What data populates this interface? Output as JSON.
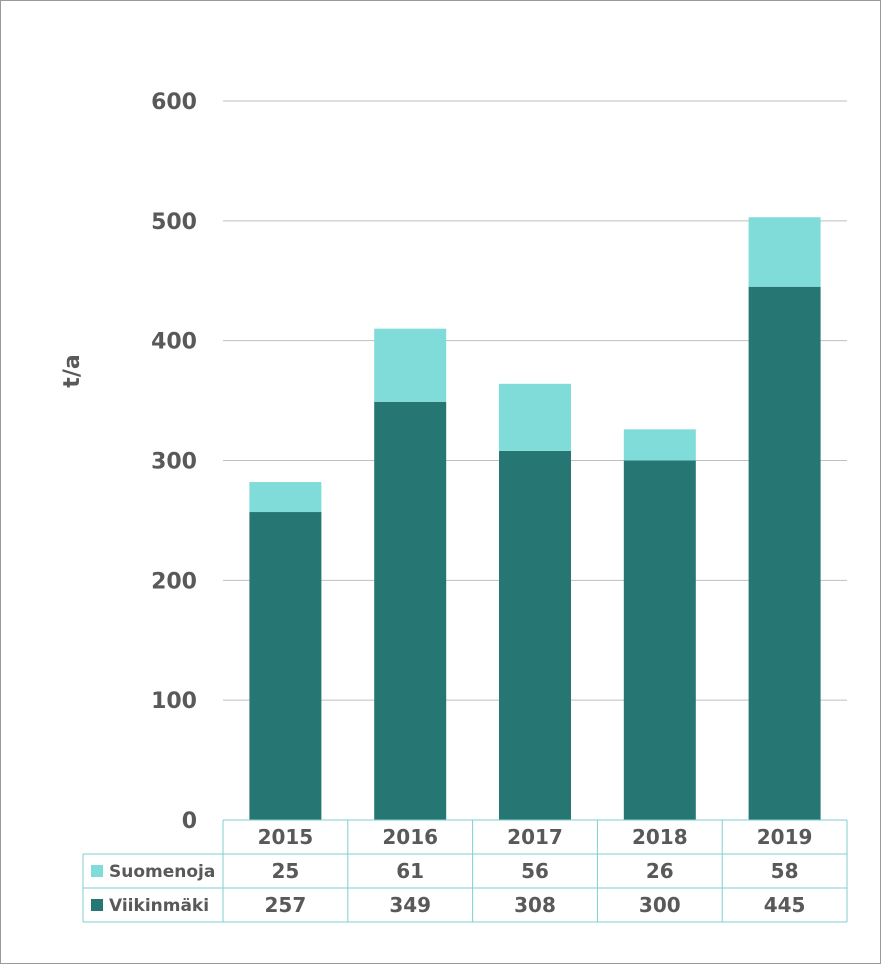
{
  "chart_data": {
    "type": "bar",
    "stacked": true,
    "categories": [
      "2015",
      "2016",
      "2017",
      "2018",
      "2019"
    ],
    "series": [
      {
        "name": "Suomenoja",
        "values": [
          25,
          61,
          56,
          26,
          58
        ],
        "color": "#7fdcd8"
      },
      {
        "name": "Viikinmäki",
        "values": [
          257,
          349,
          308,
          300,
          445
        ],
        "color": "#267773"
      }
    ],
    "ylabel": "t/a",
    "ylim": [
      0,
      600
    ],
    "yticks": [
      "0",
      "100",
      "200",
      "300",
      "400",
      "500",
      "600"
    ],
    "grid": true,
    "data_table": true
  }
}
